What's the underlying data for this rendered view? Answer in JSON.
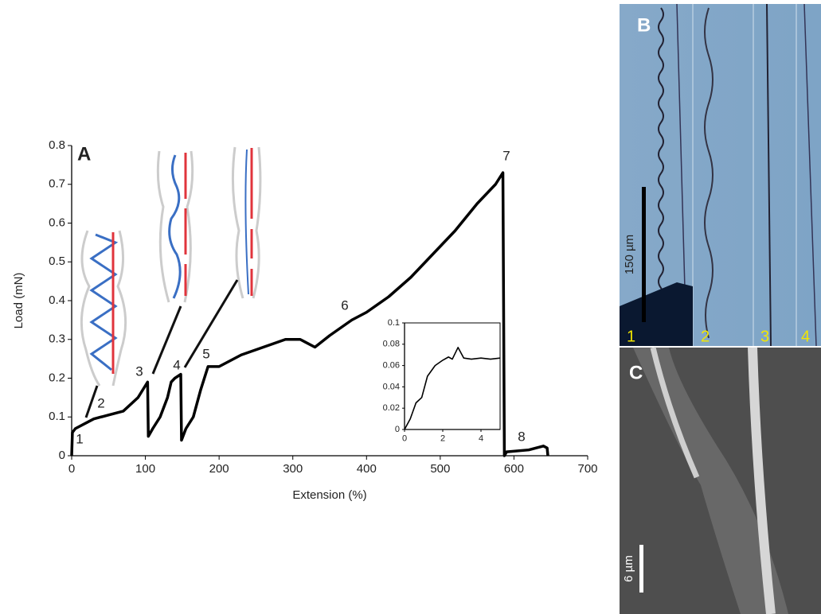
{
  "chart_data": [
    {
      "type": "line",
      "panel_label": "A",
      "xlabel": "Extension (%)",
      "ylabel": "Load (mN)",
      "color": "#000000",
      "x": [
        0,
        1,
        5,
        20,
        30,
        50,
        70,
        90,
        103,
        104,
        110,
        120,
        130,
        135,
        140,
        148,
        149,
        155,
        165,
        175,
        185,
        200,
        230,
        260,
        290,
        310,
        330,
        350,
        380,
        400,
        430,
        460,
        490,
        520,
        550,
        575,
        585,
        587,
        590,
        620,
        640,
        645,
        646
      ],
      "values": [
        0.0,
        0.06,
        0.07,
        0.085,
        0.095,
        0.105,
        0.115,
        0.15,
        0.19,
        0.05,
        0.07,
        0.1,
        0.15,
        0.19,
        0.2,
        0.21,
        0.04,
        0.07,
        0.1,
        0.17,
        0.23,
        0.23,
        0.26,
        0.28,
        0.3,
        0.3,
        0.28,
        0.31,
        0.35,
        0.37,
        0.41,
        0.46,
        0.52,
        0.58,
        0.65,
        0.7,
        0.73,
        0.0,
        0.01,
        0.015,
        0.025,
        0.02,
        0.0
      ],
      "xlim": [
        0,
        700
      ],
      "ylim": [
        0,
        0.8
      ],
      "xticks": [
        0,
        100,
        200,
        300,
        400,
        500,
        600,
        700
      ],
      "yticks": [
        0,
        0.1,
        0.2,
        0.3,
        0.4,
        0.5,
        0.6,
        0.7,
        0.8
      ],
      "annotations": [
        "1",
        "2",
        "3",
        "4",
        "5",
        "6",
        "7",
        "8"
      ]
    },
    {
      "type": "line",
      "color": "#000000",
      "x": [
        0,
        0.3,
        0.6,
        0.9,
        1.2,
        1.6,
        2.0,
        2.3,
        2.5,
        2.8,
        3.1,
        3.5,
        4,
        4.5,
        5
      ],
      "values": [
        0,
        0.01,
        0.025,
        0.03,
        0.05,
        0.06,
        0.065,
        0.068,
        0.066,
        0.077,
        0.067,
        0.066,
        0.067,
        0.066,
        0.067
      ],
      "xlim": [
        0,
        5
      ],
      "ylim": [
        0,
        0.1
      ],
      "xticks": [
        0,
        2,
        4
      ],
      "yticks": [
        0,
        0.02,
        0.04,
        0.06,
        0.08,
        0.1
      ]
    }
  ],
  "panels": {
    "B": {
      "label": "B",
      "scale_bar": "150 µm",
      "frames": [
        "1",
        "2",
        "3",
        "4"
      ]
    },
    "C": {
      "label": "C",
      "scale_bar": "6 µm"
    }
  }
}
